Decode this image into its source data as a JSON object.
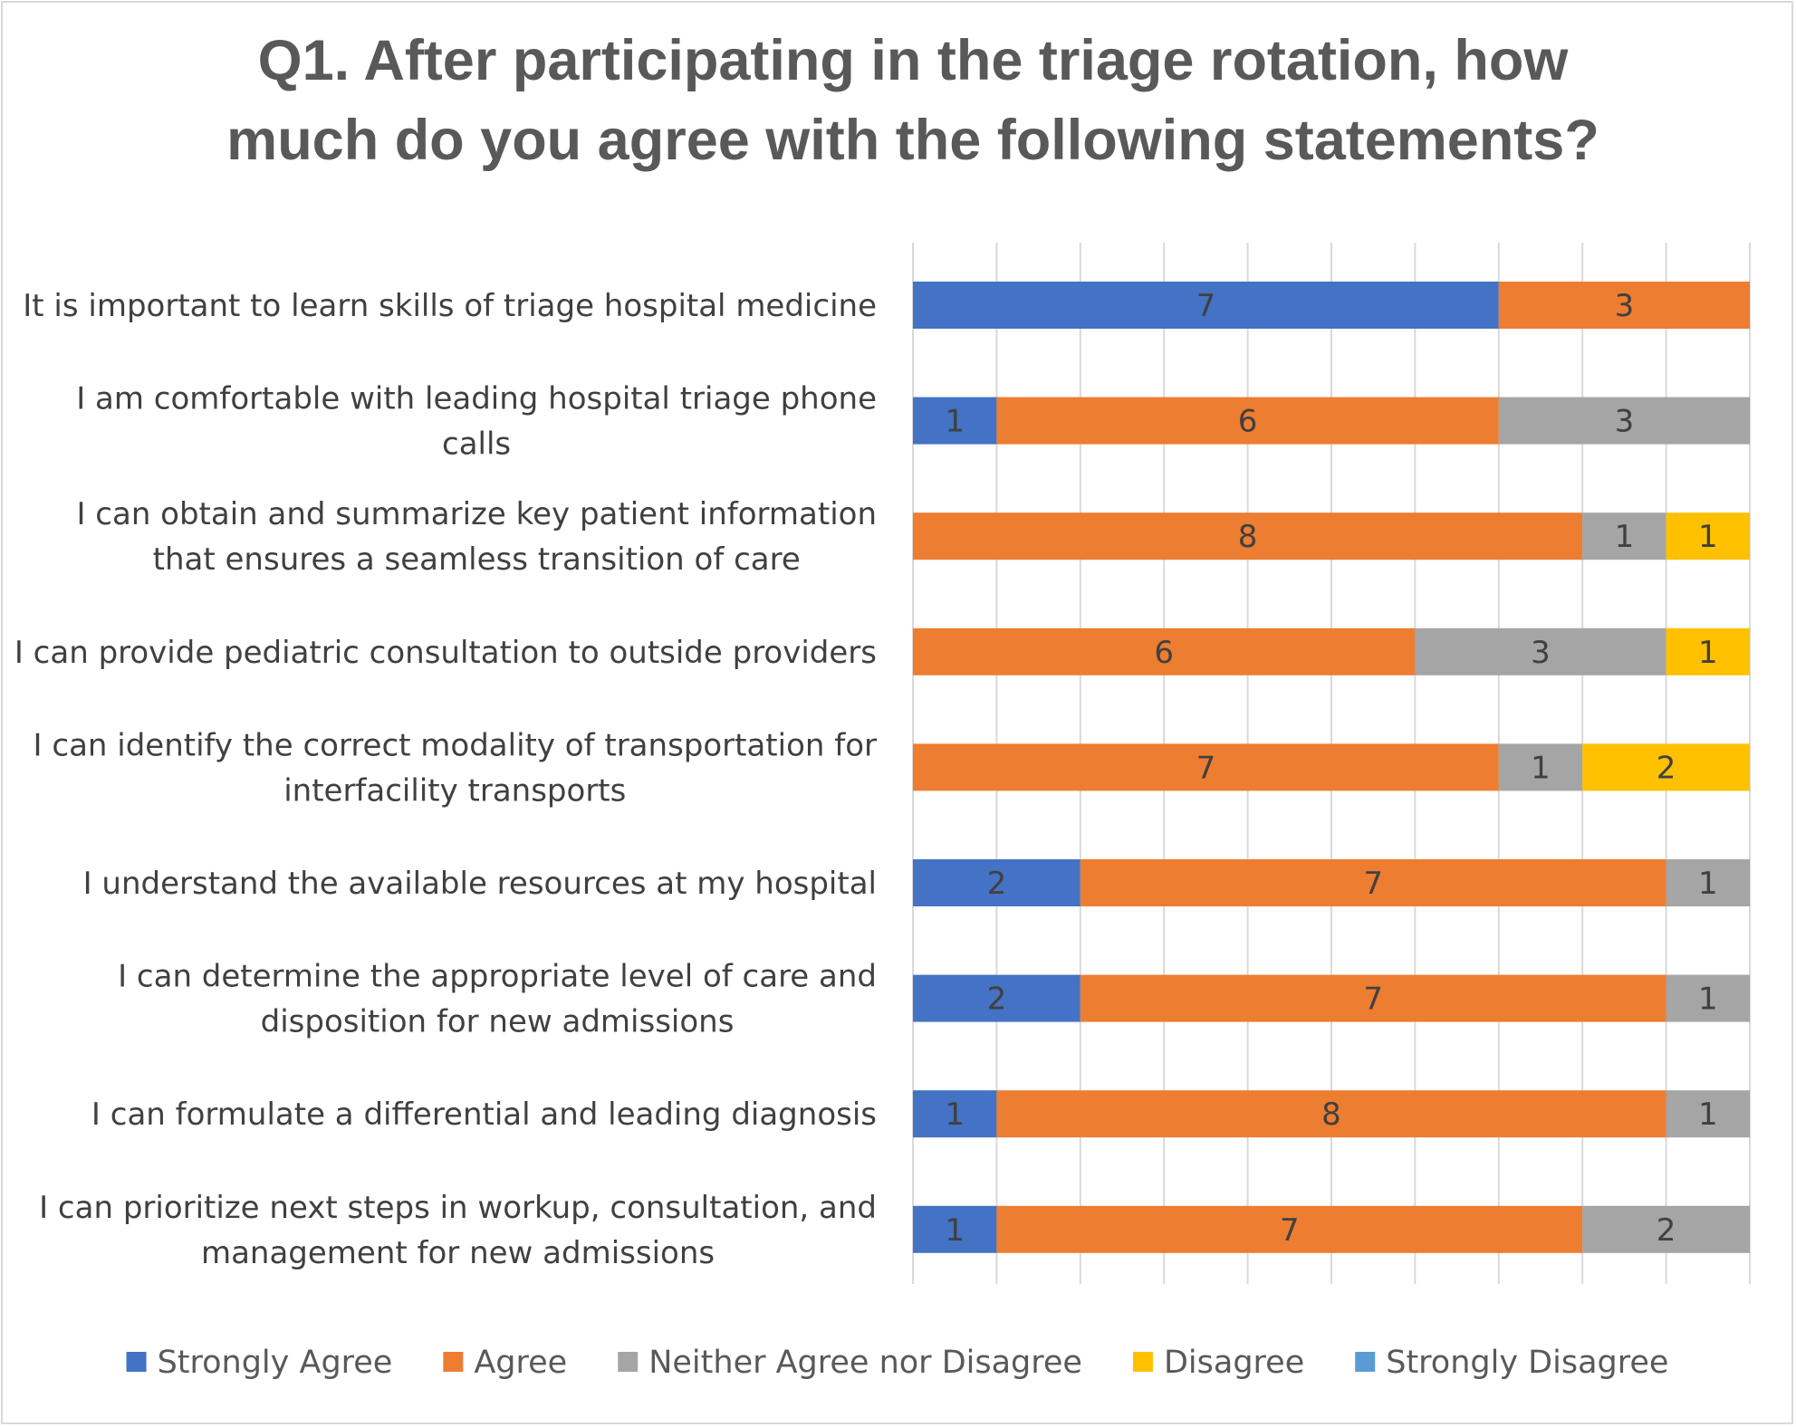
{
  "chart_data": {
    "type": "bar",
    "orientation": "horizontal",
    "stacked": true,
    "title": "Q1. After participating in the triage rotation, how much do you agree with the following statements?",
    "title_lines": [
      "Q1. After participating in the triage rotation, how",
      "much do you agree with the following statements?"
    ],
    "categories": [
      "It is important to learn skills of triage hospital medicine",
      "I am comfortable with leading hospital triage phone calls",
      "I can obtain and summarize key patient information that ensures a seamless transition of care",
      "I can provide pediatric consultation to outside providers",
      "I can identify the correct modality of transportation for interfacility transports",
      "I understand the available resources at my hospital",
      "I can determine the appropriate level of care and disposition for new admissions",
      "I can formulate a differential and leading diagnosis",
      "I can prioritize next steps in workup, consultation, and management for new admissions"
    ],
    "category_lines": [
      [
        "It is important to learn skills of triage hospital medicine"
      ],
      [
        "I am comfortable with leading hospital triage phone",
        "calls"
      ],
      [
        "I can obtain and summarize key patient information",
        "that ensures a seamless transition of care"
      ],
      [
        "I can provide pediatric consultation to outside providers"
      ],
      [
        "I can identify the correct modality of transportation for",
        "interfacility transports"
      ],
      [
        "I understand the available resources at my hospital"
      ],
      [
        "I can determine the appropriate level of care and",
        "disposition for new admissions"
      ],
      [
        "I can formulate a differential and leading diagnosis"
      ],
      [
        "I can prioritize next steps in workup, consultation, and",
        "management for new admissions"
      ]
    ],
    "series": [
      {
        "name": "Strongly Agree",
        "color": "#4472c4",
        "values": [
          7,
          1,
          0,
          0,
          0,
          2,
          2,
          1,
          1
        ]
      },
      {
        "name": "Agree",
        "color": "#ed7d31",
        "values": [
          3,
          6,
          8,
          6,
          7,
          7,
          7,
          8,
          7
        ]
      },
      {
        "name": "Neither Agree nor Disagree",
        "color": "#a5a5a5",
        "values": [
          0,
          3,
          1,
          3,
          1,
          1,
          1,
          1,
          2
        ]
      },
      {
        "name": "Disagree",
        "color": "#ffc000",
        "values": [
          0,
          0,
          1,
          1,
          2,
          0,
          0,
          0,
          0
        ]
      },
      {
        "name": "Strongly Disagree",
        "color": "#5b9bd5",
        "values": [
          0,
          0,
          0,
          0,
          0,
          0,
          0,
          0,
          0
        ]
      }
    ],
    "xlim": [
      0,
      10
    ],
    "grid": true,
    "legend": "bottom"
  }
}
